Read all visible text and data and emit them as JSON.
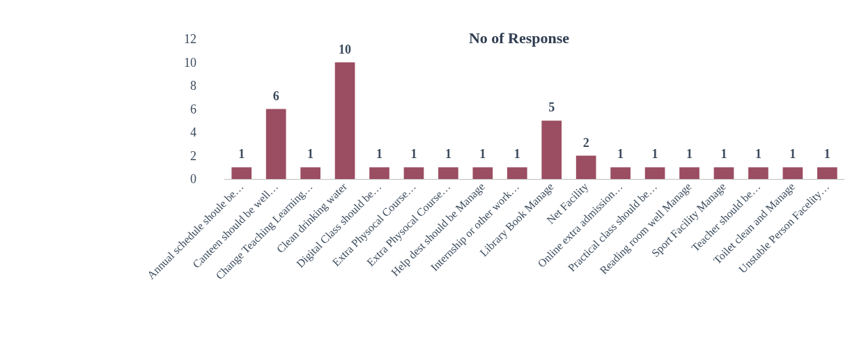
{
  "chart_data": {
    "type": "bar",
    "title": "No of Response",
    "categories": [
      "Annual schedule shoule be…",
      "Canteen should be well…",
      "Change Teaching Learning…",
      "Clean drinking water",
      "Digital Class should be…",
      "Extra Physocal Course…",
      "Extra Physocal Course…",
      "Help dest should be Manage",
      "Internship or other work…",
      "Library Book Manage",
      "Net Facility",
      "Online extra admission…",
      "Practical class should be…",
      "Reading room well Manage",
      "Sport Facility Manage",
      "Teacher should be…",
      "Toilet clean and Manage",
      "Unstable Person Facelity…"
    ],
    "values": [
      1,
      6,
      1,
      10,
      1,
      1,
      1,
      1,
      1,
      5,
      2,
      1,
      1,
      1,
      1,
      1,
      1,
      1
    ],
    "color": "#9b4d62",
    "ylim": [
      0,
      12
    ],
    "yticks": [
      0,
      2,
      4,
      6,
      8,
      10,
      12
    ],
    "data_labels": true,
    "grid": false
  }
}
